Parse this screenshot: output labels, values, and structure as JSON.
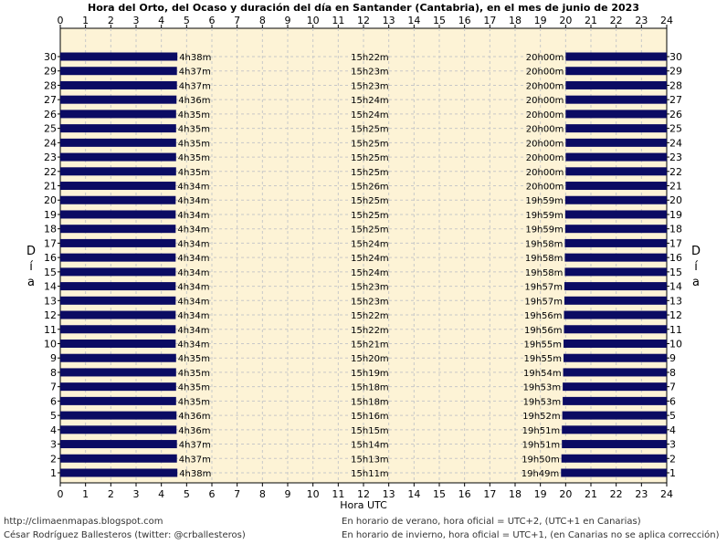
{
  "chart_data": {
    "type": "bar",
    "title": "Hora del Orto, del Ocaso y duración del día en Santander (Cantabria), en el mes de junio de 2023",
    "xlabel": "Hora UTC",
    "ylabel": "Día",
    "xlim": [
      0,
      24
    ],
    "x_ticks": [
      "0",
      "1",
      "2",
      "3",
      "4",
      "5",
      "6",
      "7",
      "8",
      "9",
      "10",
      "11",
      "12",
      "13",
      "14",
      "15",
      "16",
      "17",
      "18",
      "19",
      "20",
      "21",
      "22",
      "23",
      "24"
    ],
    "ylim": [
      1,
      30
    ],
    "grid": true,
    "colors": {
      "bar": "#0b0b63",
      "plot_bg": "#fdf3d6",
      "grid": "#c8c8c8"
    },
    "days": [
      1,
      2,
      3,
      4,
      5,
      6,
      7,
      8,
      9,
      10,
      11,
      12,
      13,
      14,
      15,
      16,
      17,
      18,
      19,
      20,
      21,
      22,
      23,
      24,
      25,
      26,
      27,
      28,
      29,
      30
    ],
    "sunrise": [
      "4h38m",
      "4h37m",
      "4h37m",
      "4h36m",
      "4h36m",
      "4h35m",
      "4h35m",
      "4h35m",
      "4h35m",
      "4h34m",
      "4h34m",
      "4h34m",
      "4h34m",
      "4h34m",
      "4h34m",
      "4h34m",
      "4h34m",
      "4h34m",
      "4h34m",
      "4h34m",
      "4h34m",
      "4h35m",
      "4h35m",
      "4h35m",
      "4h35m",
      "4h35m",
      "4h36m",
      "4h37m",
      "4h37m",
      "4h38m"
    ],
    "day_length": [
      "15h11m",
      "15h13m",
      "15h14m",
      "15h15m",
      "15h16m",
      "15h18m",
      "15h18m",
      "15h19m",
      "15h20m",
      "15h21m",
      "15h22m",
      "15h22m",
      "15h23m",
      "15h23m",
      "15h24m",
      "15h24m",
      "15h24m",
      "15h25m",
      "15h25m",
      "15h25m",
      "15h26m",
      "15h25m",
      "15h25m",
      "15h25m",
      "15h25m",
      "15h24m",
      "15h24m",
      "15h23m",
      "15h23m",
      "15h22m"
    ],
    "sunset": [
      "19h49m",
      "19h50m",
      "19h51m",
      "19h51m",
      "19h52m",
      "19h53m",
      "19h53m",
      "19h54m",
      "19h55m",
      "19h55m",
      "19h56m",
      "19h56m",
      "19h57m",
      "19h57m",
      "19h58m",
      "19h58m",
      "19h58m",
      "19h59m",
      "19h59m",
      "19h59m",
      "20h00m",
      "20h00m",
      "20h00m",
      "20h00m",
      "20h00m",
      "20h00m",
      "20h00m",
      "20h00m",
      "20h00m",
      "20h00m"
    ]
  },
  "footer": {
    "url": "http://climaenmapas.blogspot.com",
    "author": "César Rodríguez Ballesteros (twitter: @crballesteros)",
    "note_summer": "En horario de verano, hora oficial = UTC+2, (UTC+1 en Canarias)",
    "note_winter": "En horario de invierno, hora oficial = UTC+1, (en Canarias no se aplica corrección)"
  }
}
